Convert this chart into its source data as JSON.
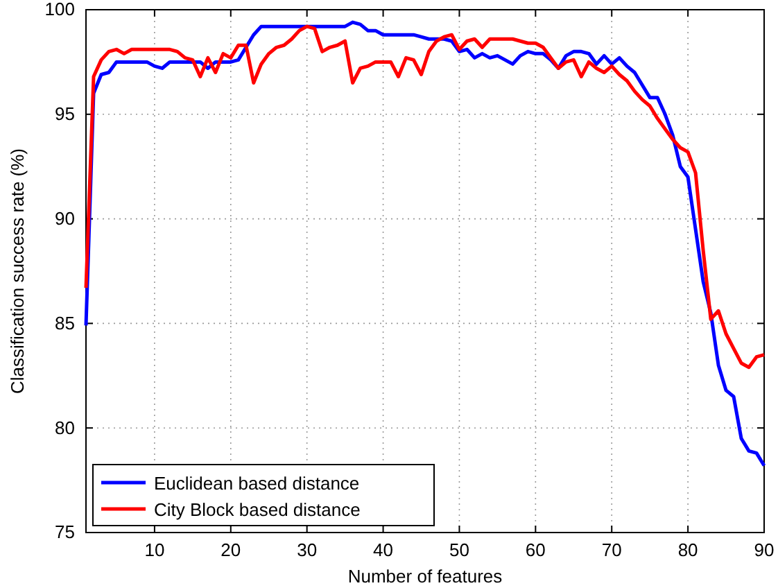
{
  "chart_data": {
    "type": "line",
    "xlabel": "Number of features",
    "ylabel": "Classification success rate (%)",
    "x": [
      1,
      2,
      3,
      4,
      5,
      6,
      7,
      8,
      9,
      10,
      11,
      12,
      13,
      14,
      15,
      16,
      17,
      18,
      19,
      20,
      21,
      22,
      23,
      24,
      25,
      26,
      27,
      28,
      29,
      30,
      31,
      32,
      33,
      34,
      35,
      36,
      37,
      38,
      39,
      40,
      41,
      42,
      43,
      44,
      45,
      46,
      47,
      48,
      49,
      50,
      51,
      52,
      53,
      54,
      55,
      56,
      57,
      58,
      59,
      60,
      61,
      62,
      63,
      64,
      65,
      66,
      67,
      68,
      69,
      70,
      71,
      72,
      73,
      74,
      75,
      76,
      77,
      78,
      79,
      80,
      81,
      82,
      83,
      84,
      85,
      86,
      87,
      88,
      89,
      90
    ],
    "series": [
      {
        "name": "Euclidean based distance",
        "color": "#0000ff",
        "values": [
          84.9,
          96.0,
          96.9,
          97.0,
          97.5,
          97.5,
          97.5,
          97.5,
          97.5,
          97.3,
          97.2,
          97.5,
          97.5,
          97.5,
          97.5,
          97.5,
          97.2,
          97.5,
          97.5,
          97.5,
          97.6,
          98.2,
          98.8,
          99.2,
          99.2,
          99.2,
          99.2,
          99.2,
          99.2,
          99.2,
          99.2,
          99.2,
          99.2,
          99.2,
          99.2,
          99.4,
          99.3,
          99.0,
          99.0,
          98.8,
          98.8,
          98.8,
          98.8,
          98.8,
          98.7,
          98.6,
          98.6,
          98.6,
          98.5,
          98.0,
          98.1,
          97.7,
          97.9,
          97.7,
          97.8,
          97.6,
          97.4,
          97.8,
          98.0,
          97.9,
          97.9,
          97.6,
          97.2,
          97.8,
          98.0,
          98.0,
          97.9,
          97.4,
          97.8,
          97.4,
          97.7,
          97.3,
          97.0,
          96.4,
          95.8,
          95.8,
          95.0,
          94.0,
          92.5,
          92.0,
          89.5,
          87.0,
          85.5,
          83.0,
          81.8,
          81.5,
          79.5,
          78.9,
          78.8,
          78.2
        ]
      },
      {
        "name": "City Block based distance",
        "color": "#ff0000",
        "values": [
          86.7,
          96.8,
          97.6,
          98.0,
          98.1,
          97.9,
          98.1,
          98.1,
          98.1,
          98.1,
          98.1,
          98.1,
          98.0,
          97.7,
          97.6,
          96.8,
          97.7,
          97.0,
          97.9,
          97.7,
          98.3,
          98.3,
          96.5,
          97.4,
          97.9,
          98.2,
          98.3,
          98.6,
          99.0,
          99.2,
          99.1,
          98.0,
          98.2,
          98.3,
          98.5,
          96.5,
          97.2,
          97.3,
          97.5,
          97.5,
          97.5,
          96.8,
          97.7,
          97.6,
          96.9,
          98.0,
          98.5,
          98.7,
          98.8,
          98.1,
          98.5,
          98.6,
          98.2,
          98.6,
          98.6,
          98.6,
          98.6,
          98.5,
          98.4,
          98.4,
          98.2,
          97.7,
          97.2,
          97.5,
          97.6,
          96.8,
          97.5,
          97.2,
          97.0,
          97.3,
          96.9,
          96.6,
          96.1,
          95.7,
          95.4,
          94.8,
          94.3,
          93.8,
          93.4,
          93.2,
          92.2,
          88.5,
          85.2,
          85.6,
          84.5,
          83.8,
          83.1,
          82.9,
          83.4,
          83.5
        ]
      }
    ],
    "xlim": [
      1,
      90
    ],
    "xticks": [
      10,
      20,
      30,
      40,
      50,
      60,
      70,
      80,
      90
    ],
    "ylim": [
      75,
      100
    ],
    "yticks": [
      75,
      80,
      85,
      90,
      95,
      100
    ],
    "grid": true,
    "legend": "bottom left",
    "line_style": "solid",
    "marker": "none"
  }
}
